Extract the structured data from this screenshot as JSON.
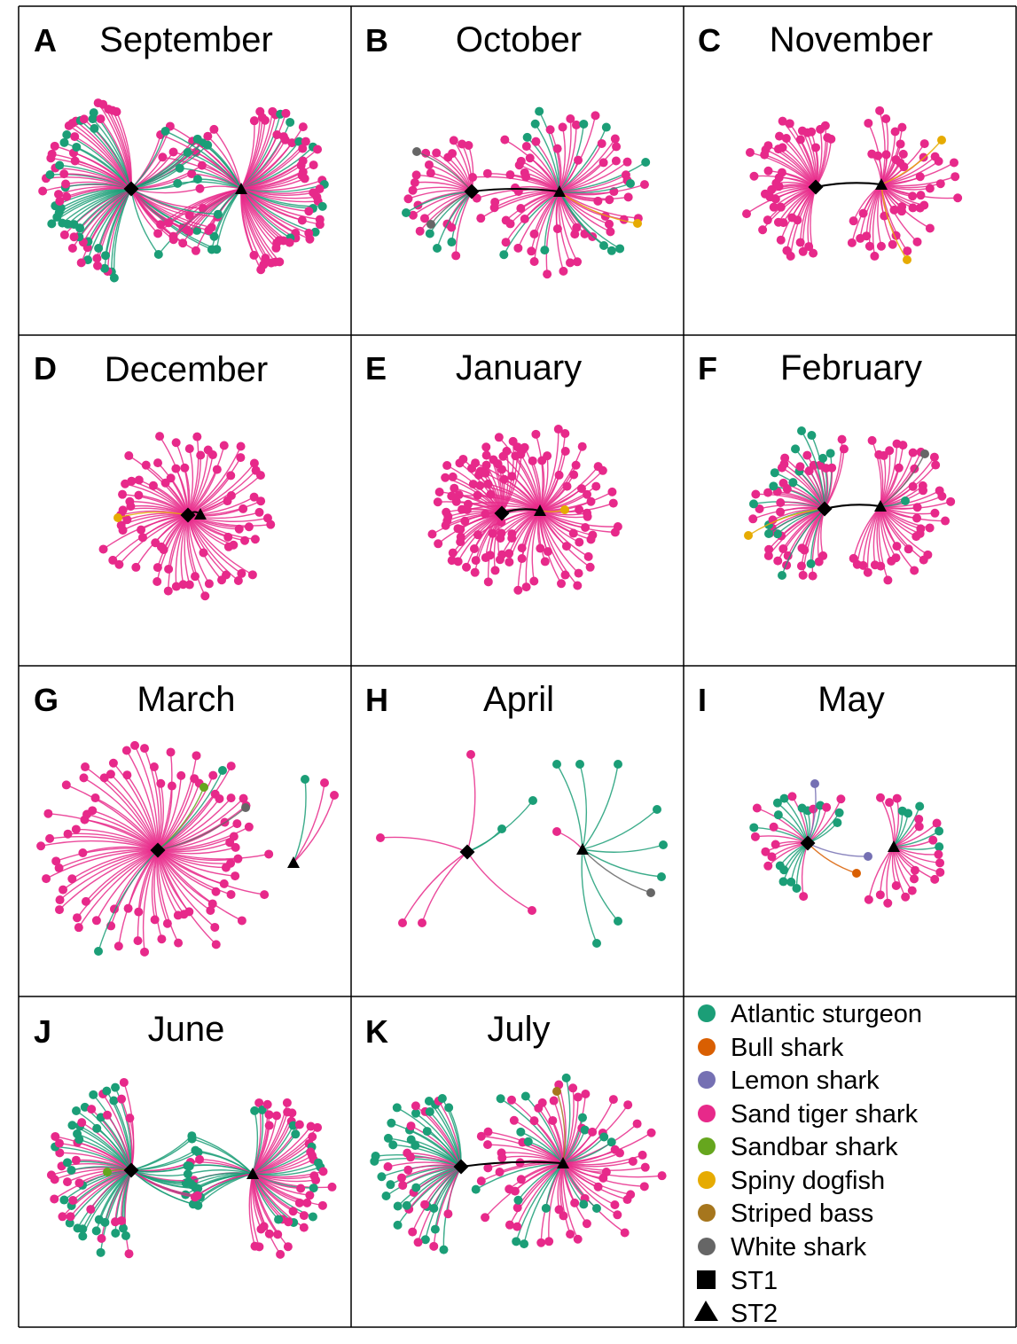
{
  "colors": {
    "atlantic_sturgeon": "#1b9e77",
    "bull_shark": "#d95f02",
    "lemon_shark": "#7570b3",
    "sand_tiger_shark": "#e7298a",
    "sandbar_shark": "#66a61e",
    "spiny_dogfish": "#e6ab02",
    "striped_bass": "#a6761d",
    "white_shark": "#666666",
    "station": "#000000",
    "border": "#000000"
  },
  "panels": [
    {
      "letter": "A",
      "month": "September"
    },
    {
      "letter": "B",
      "month": "October"
    },
    {
      "letter": "C",
      "month": "November"
    },
    {
      "letter": "D",
      "month": "December"
    },
    {
      "letter": "E",
      "month": "January"
    },
    {
      "letter": "F",
      "month": "February"
    },
    {
      "letter": "G",
      "month": "March"
    },
    {
      "letter": "H",
      "month": "April"
    },
    {
      "letter": "I",
      "month": "May"
    },
    {
      "letter": "J",
      "month": "June"
    },
    {
      "letter": "K",
      "month": "July"
    }
  ],
  "legend": {
    "species": [
      {
        "label": "Atlantic sturgeon",
        "color": "#1b9e77"
      },
      {
        "label": "Bull shark",
        "color": "#d95f02"
      },
      {
        "label": "Lemon shark",
        "color": "#7570b3"
      },
      {
        "label": "Sand tiger shark",
        "color": "#e7298a"
      },
      {
        "label": "Sandbar shark",
        "color": "#66a61e"
      },
      {
        "label": "Spiny dogfish",
        "color": "#e6ab02"
      },
      {
        "label": "Striped bass",
        "color": "#a6761d"
      },
      {
        "label": "White shark",
        "color": "#666666"
      }
    ],
    "stations": [
      {
        "label": "ST1",
        "shape": "square"
      },
      {
        "label": "ST2",
        "shape": "triangle"
      }
    ]
  }
}
